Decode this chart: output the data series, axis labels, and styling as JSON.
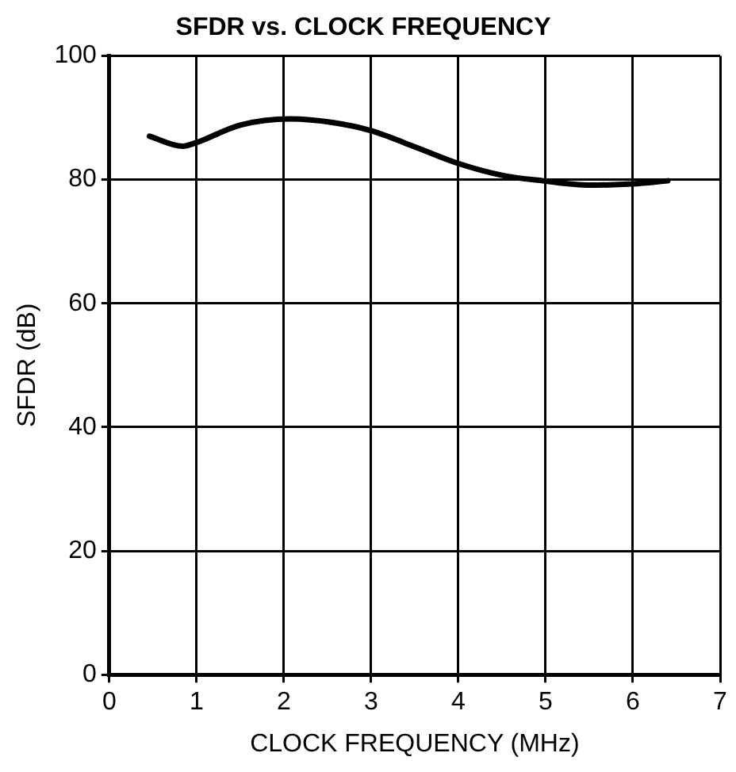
{
  "chart_data": {
    "type": "line",
    "title": "SFDR vs. CLOCK FREQUENCY",
    "xlabel": "CLOCK FREQUENCY (MHz)",
    "ylabel": "SFDR (dB)",
    "x": [
      0.46,
      0.84,
      1.0,
      1.5,
      2.07,
      2.57,
      3.0,
      3.5,
      4.0,
      4.5,
      4.97,
      5.5,
      6.0,
      6.4
    ],
    "series": [
      {
        "color": "#000000",
        "values": [
          87.0,
          85.4,
          86.0,
          88.8,
          89.8,
          89.2,
          87.9,
          85.3,
          82.6,
          80.7,
          79.8,
          79.1,
          79.3,
          79.8
        ]
      }
    ],
    "xlim": [
      0,
      7
    ],
    "xticks": [
      0,
      1,
      2,
      3,
      4,
      5,
      6,
      7
    ],
    "ylim": [
      0,
      100
    ],
    "yticks": [
      0,
      20,
      40,
      60,
      80,
      100
    ],
    "grid": true,
    "legend": false,
    "marker": "none",
    "line_style": "solid"
  }
}
